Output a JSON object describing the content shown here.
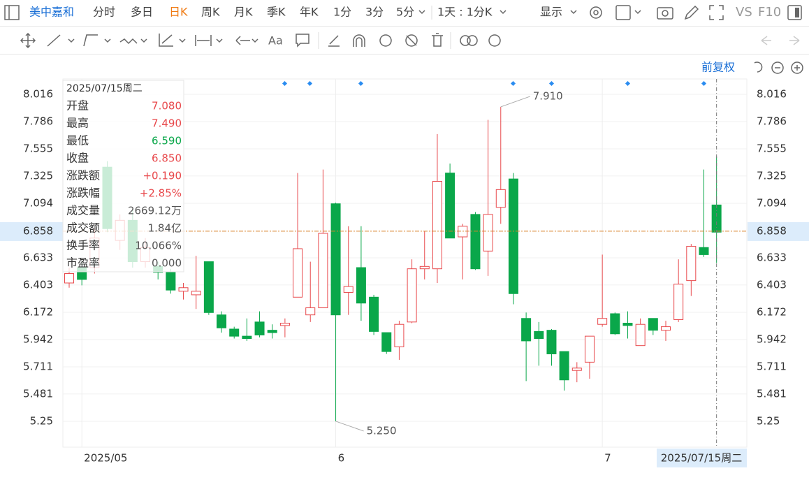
{
  "ui": {
    "stock_name": "美中嘉和",
    "tabs": [
      "分时",
      "多日",
      "日K",
      "周K",
      "月K",
      "季K",
      "年K",
      "1分",
      "3分",
      "5分"
    ],
    "period_select": "1天 : 1分K",
    "display": "显示",
    "vs": "VS",
    "f10": "F10",
    "draw_text": "Aa",
    "adjust": "前复权"
  },
  "chart_data": {
    "type": "candlestick",
    "categories": [
      null,
      "2025/05",
      null,
      null,
      null,
      null,
      null,
      null,
      null,
      null,
      null,
      null,
      null,
      null,
      null,
      null,
      null,
      null,
      null,
      null,
      null,
      "6",
      null,
      null,
      null,
      null,
      null,
      null,
      null,
      null,
      null,
      null,
      null,
      null,
      null,
      null,
      null,
      null,
      null,
      null,
      null,
      null,
      "7",
      null,
      null,
      null,
      null,
      null,
      null,
      null,
      null,
      null
    ],
    "open": [
      6.42,
      6.55,
      6.55,
      7.4,
      6.78,
      6.95,
      6.6,
      6.56,
      6.51,
      6.35,
      6.32,
      6.6,
      6.15,
      6.03,
      5.97,
      6.09,
      6.02,
      6.06,
      6.3,
      6.15,
      6.21,
      7.09,
      6.34,
      6.55,
      6.3,
      6.0,
      5.88,
      6.09,
      6.54,
      6.54,
      7.35,
      6.81,
      7.0,
      6.69,
      7.06,
      7.3,
      6.12,
      6.01,
      6.02,
      5.84,
      5.68,
      5.75,
      6.07,
      6.16,
      6.08,
      5.89,
      6.12,
      6.02,
      6.11,
      6.44,
      6.72,
      7.08
    ],
    "high": [
      6.55,
      6.6,
      6.88,
      7.45,
      7.0,
      7.05,
      6.8,
      6.6,
      6.54,
      6.42,
      6.65,
      6.6,
      6.18,
      6.05,
      6.12,
      6.18,
      6.07,
      6.12,
      7.35,
      6.6,
      7.38,
      7.1,
      6.9,
      6.9,
      6.32,
      6.0,
      6.1,
      6.62,
      6.86,
      7.68,
      7.43,
      6.92,
      7.02,
      7.8,
      7.91,
      7.35,
      6.17,
      6.09,
      6.03,
      5.84,
      5.75,
      5.97,
      6.66,
      6.17,
      6.18,
      6.12,
      6.12,
      6.1,
      6.62,
      6.75,
      7.38,
      7.49
    ],
    "low": [
      6.38,
      6.4,
      6.5,
      6.85,
      6.7,
      6.55,
      6.55,
      6.45,
      6.33,
      6.28,
      6.2,
      6.15,
      6.0,
      5.95,
      5.93,
      5.96,
      5.95,
      5.96,
      6.3,
      6.09,
      6.21,
      5.25,
      6.15,
      6.1,
      5.98,
      5.82,
      5.77,
      6.08,
      6.45,
      6.42,
      6.8,
      6.45,
      6.53,
      6.48,
      6.92,
      6.24,
      5.59,
      5.72,
      5.72,
      5.51,
      5.58,
      5.61,
      6.05,
      5.98,
      5.95,
      5.89,
      5.98,
      5.93,
      6.09,
      6.31,
      6.64,
      6.59
    ],
    "close": [
      6.5,
      6.45,
      6.8,
      6.88,
      6.95,
      6.6,
      6.72,
      6.51,
      6.36,
      6.38,
      6.35,
      6.17,
      6.04,
      5.97,
      5.95,
      5.98,
      6.0,
      6.08,
      6.71,
      6.21,
      6.84,
      6.15,
      6.39,
      6.25,
      6.01,
      5.84,
      6.07,
      6.54,
      6.56,
      7.28,
      6.8,
      6.9,
      6.54,
      7.0,
      7.21,
      6.33,
      5.93,
      5.95,
      5.82,
      5.6,
      5.7,
      5.97,
      6.12,
      5.99,
      6.06,
      6.07,
      6.02,
      6.05,
      6.41,
      6.73,
      6.66,
      6.85
    ],
    "up_color": "#e8484b",
    "down_color": "#0aa74a",
    "ylim": [
      5.031,
      8.146
    ],
    "yticks": [
      8.016,
      7.786,
      7.555,
      7.325,
      7.094,
      6.633,
      6.403,
      6.172,
      5.942,
      5.711,
      5.481,
      5.25
    ],
    "grid": true,
    "last_price": 6.858,
    "max_label": {
      "value": 7.91,
      "label": "7.910"
    },
    "min_label": {
      "value": 5.25,
      "label": "5.250"
    },
    "tooltip": {
      "date": "2025/07/15周二",
      "rows": [
        {
          "name": "开盘",
          "value": "7.080",
          "color": "#e8484b"
        },
        {
          "name": "最高",
          "value": "7.490",
          "color": "#e8484b"
        },
        {
          "name": "最低",
          "value": "6.590",
          "color": "#0aa74a"
        },
        {
          "name": "收盘",
          "value": "6.850",
          "color": "#e8484b"
        },
        {
          "name": "涨跌额",
          "value": "+0.190",
          "color": "#e8484b"
        },
        {
          "name": "涨跌幅",
          "value": "+2.85%",
          "color": "#e8484b"
        },
        {
          "name": "成交量",
          "value": "2669.12万",
          "color": "#555555"
        },
        {
          "name": "成交额",
          "value": "1.84亿",
          "color": "#555555"
        },
        {
          "name": "换手率",
          "value": "10.066%",
          "color": "#555555"
        },
        {
          "name": "市盈率",
          "value": "0.000",
          "color": "#555555"
        }
      ]
    }
  }
}
